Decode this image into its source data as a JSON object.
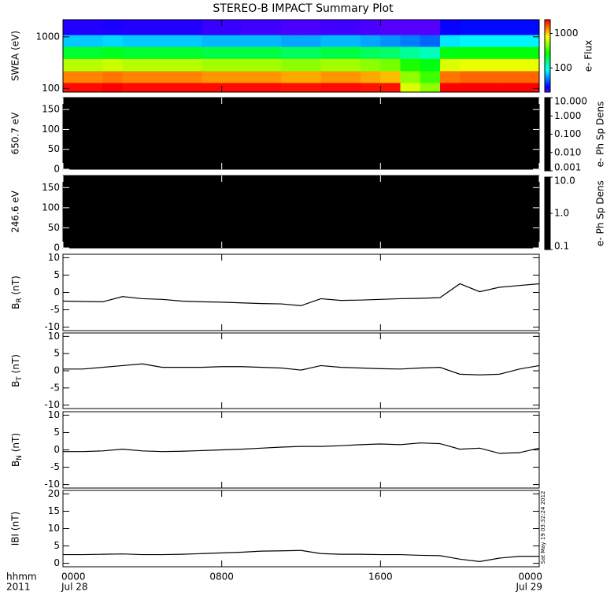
{
  "title": "STEREO-B IMPACT Summary Plot",
  "timestamp": "Sat May 19 03:32:24 2012",
  "xaxis": {
    "xlim": [
      0,
      24
    ],
    "xticks": [
      {
        "value": 0,
        "label": "0000"
      },
      {
        "value": 8,
        "label": "0800"
      },
      {
        "value": 16,
        "label": "1600"
      },
      {
        "value": 24,
        "label": "0000"
      }
    ],
    "date_labels": [
      "Jul 28",
      null,
      null,
      "Jul 29"
    ],
    "time_format": "hhmm",
    "year": "2011"
  },
  "chart_data": [
    {
      "type": "heatmap",
      "ylabel": "SWEA (eV)",
      "log": true,
      "ylim": [
        85,
        2150
      ],
      "yticks": [
        100,
        1000
      ],
      "clabel": "e- Flux",
      "clim": [
        20,
        2500
      ],
      "cticks": [
        100,
        1000
      ],
      "xbins": [
        0,
        1,
        2,
        3,
        4,
        5,
        6,
        7,
        8,
        9,
        10,
        11,
        12,
        13,
        14,
        15,
        16,
        17,
        18,
        19,
        20,
        21,
        22,
        23,
        24
      ],
      "ybins": [
        85,
        130,
        220,
        380,
        650,
        1100,
        2150
      ],
      "values": [
        [
          2400,
          2400,
          2500,
          2400,
          2400,
          2400,
          2400,
          2400,
          2400,
          2400,
          2400,
          2300,
          2300,
          2400,
          2400,
          2300,
          2300,
          700,
          500,
          2500,
          2600,
          2600,
          2600,
          2600
        ],
        [
          1400,
          1400,
          1500,
          1400,
          1400,
          1400,
          1400,
          1300,
          1300,
          1300,
          1300,
          1200,
          1200,
          1300,
          1300,
          1200,
          1100,
          500,
          350,
          1500,
          1600,
          1600,
          1600,
          1600
        ],
        [
          600,
          600,
          650,
          600,
          600,
          600,
          600,
          550,
          550,
          550,
          550,
          500,
          500,
          550,
          550,
          500,
          450,
          300,
          250,
          700,
          750,
          750,
          750,
          750
        ],
        [
          220,
          220,
          240,
          220,
          220,
          220,
          220,
          200,
          200,
          200,
          200,
          180,
          180,
          200,
          200,
          180,
          170,
          140,
          120,
          250,
          260,
          260,
          260,
          260
        ],
        [
          70,
          70,
          75,
          70,
          70,
          70,
          70,
          65,
          65,
          65,
          65,
          60,
          60,
          65,
          65,
          60,
          55,
          50,
          45,
          80,
          85,
          85,
          85,
          85
        ],
        [
          25,
          25,
          26,
          25,
          25,
          25,
          25,
          23,
          23,
          22,
          22,
          21,
          21,
          22,
          22,
          21,
          20,
          20,
          20,
          28,
          30,
          30,
          30,
          30
        ]
      ]
    },
    {
      "type": "image",
      "ylabel": "650.7 eV",
      "ylim": [
        0,
        180
      ],
      "yticks": [
        0,
        50,
        100,
        150
      ],
      "fill": "#000000",
      "clabel": "e- Ph Sp Dens",
      "clim": [
        0.001,
        10
      ],
      "cticks": [
        {
          "value": 10,
          "label": "10.000"
        },
        {
          "value": 1,
          "label": "1.000"
        },
        {
          "value": 0.1,
          "label": "0.100"
        },
        {
          "value": 0.01,
          "label": "0.010"
        },
        {
          "value": 0.001,
          "label": "0.001"
        }
      ]
    },
    {
      "type": "image",
      "ylabel": "246.6 eV",
      "ylim": [
        0,
        180
      ],
      "yticks": [
        0,
        50,
        100,
        150
      ],
      "fill": "#000000",
      "clabel": "e- Ph Sp Dens",
      "clim": [
        0.1,
        10
      ],
      "cticks": [
        {
          "value": 10,
          "label": "10.0"
        },
        {
          "value": 1,
          "label": "1.0"
        },
        {
          "value": 0.1,
          "label": "0.1"
        }
      ]
    },
    {
      "type": "line",
      "ylabel": [
        "B",
        "R",
        " (nT)"
      ],
      "ylim": [
        -11,
        11
      ],
      "yticks": [
        -10,
        -5,
        0,
        5,
        10
      ],
      "color": "#000000",
      "x": [
        0,
        1,
        2,
        3,
        4,
        5,
        6,
        7,
        8,
        9,
        10,
        11,
        12,
        13,
        14,
        15,
        16,
        17,
        18,
        19,
        20,
        21,
        22,
        23,
        24
      ],
      "values": [
        -2.5,
        -2.6,
        -2.7,
        -1.2,
        -1.8,
        -2.0,
        -2.5,
        -2.7,
        -2.8,
        -3.0,
        -3.2,
        -3.3,
        -3.8,
        -1.8,
        -2.3,
        -2.2,
        -2.0,
        -1.8,
        -1.7,
        -1.5,
        2.5,
        0.2,
        1.5,
        2.0,
        2.5
      ]
    },
    {
      "type": "line",
      "ylabel": [
        "B",
        "T",
        " (nT)"
      ],
      "ylim": [
        -11,
        11
      ],
      "yticks": [
        -10,
        -5,
        0,
        5,
        10
      ],
      "color": "#000000",
      "x": [
        0,
        1,
        2,
        3,
        4,
        5,
        6,
        7,
        8,
        9,
        10,
        11,
        12,
        13,
        14,
        15,
        16,
        17,
        18,
        19,
        20,
        21,
        22,
        23,
        24
      ],
      "values": [
        0.5,
        0.5,
        1.0,
        1.5,
        2.0,
        1.0,
        1.0,
        1.0,
        1.2,
        1.2,
        1.0,
        0.8,
        0.2,
        1.5,
        1.0,
        0.8,
        0.6,
        0.5,
        0.8,
        1.0,
        -1.0,
        -1.2,
        -1.0,
        0.5,
        1.5
      ]
    },
    {
      "type": "line",
      "ylabel": [
        "B",
        "N",
        " (nT)"
      ],
      "ylim": [
        -11,
        11
      ],
      "yticks": [
        -10,
        -5,
        0,
        5,
        10
      ],
      "color": "#000000",
      "x": [
        0,
        1,
        2,
        3,
        4,
        5,
        6,
        7,
        8,
        9,
        10,
        11,
        12,
        13,
        14,
        15,
        16,
        17,
        18,
        19,
        20,
        21,
        22,
        23,
        24
      ],
      "values": [
        -0.5,
        -0.5,
        -0.3,
        0.2,
        -0.3,
        -0.5,
        -0.4,
        -0.2,
        0,
        0.2,
        0.5,
        0.8,
        1.0,
        1.0,
        1.2,
        1.5,
        1.7,
        1.5,
        2.0,
        1.8,
        0.2,
        0.5,
        -1.0,
        -0.8,
        0.5
      ]
    },
    {
      "type": "line",
      "ylabel": "IBI (nT)",
      "ylim": [
        -1,
        21
      ],
      "yticks": [
        0,
        5,
        10,
        15,
        20
      ],
      "color": "#000000",
      "x": [
        0,
        1,
        2,
        3,
        4,
        5,
        6,
        7,
        8,
        9,
        10,
        11,
        12,
        13,
        14,
        15,
        16,
        17,
        18,
        19,
        20,
        21,
        22,
        23,
        24
      ],
      "values": [
        2.5,
        2.5,
        2.6,
        2.7,
        2.5,
        2.5,
        2.6,
        2.8,
        3.0,
        3.2,
        3.5,
        3.6,
        3.7,
        2.8,
        2.6,
        2.6,
        2.5,
        2.5,
        2.3,
        2.2,
        1.2,
        0.5,
        1.5,
        2.0,
        2.0
      ]
    }
  ]
}
